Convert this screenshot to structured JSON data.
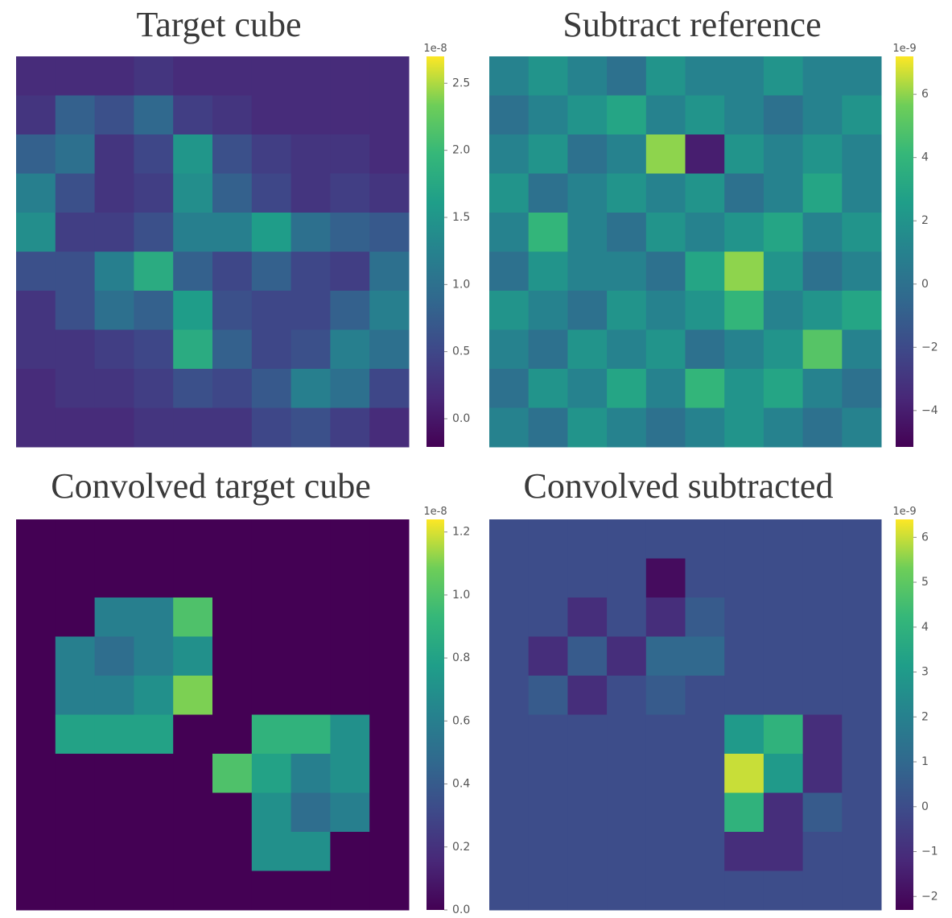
{
  "chart_data": [
    {
      "type": "heatmap",
      "title": "Target cube",
      "scale_label": "1e-8",
      "colormap": "viridis",
      "clim": [
        -0.21,
        2.7
      ],
      "cticks": [
        {
          "value": 0,
          "label": "0.0"
        },
        0.5,
        {
          "value": 1,
          "label": "1.0"
        },
        1.5,
        {
          "value": 2,
          "label": "2.0"
        },
        2.5
      ],
      "values": [
        [
          0.2,
          0.2,
          0.2,
          0.3,
          0.2,
          0.2,
          0.2,
          0.2,
          0.2,
          0.2
        ],
        [
          0.3,
          0.8,
          0.6,
          0.9,
          0.4,
          0.3,
          0.2,
          0.2,
          0.2,
          0.2
        ],
        [
          0.8,
          1.0,
          0.3,
          0.5,
          1.5,
          0.6,
          0.4,
          0.3,
          0.3,
          0.2
        ],
        [
          1.2,
          0.6,
          0.3,
          0.4,
          1.4,
          0.8,
          0.5,
          0.3,
          0.4,
          0.3
        ],
        [
          1.4,
          0.4,
          0.4,
          0.6,
          1.2,
          1.2,
          1.6,
          1.0,
          0.8,
          0.7
        ],
        [
          0.6,
          0.6,
          1.2,
          1.8,
          0.8,
          0.5,
          0.8,
          0.5,
          0.4,
          1.0
        ],
        [
          0.3,
          0.6,
          1.0,
          0.8,
          1.6,
          0.6,
          0.5,
          0.5,
          0.8,
          1.2
        ],
        [
          0.3,
          0.3,
          0.4,
          0.5,
          1.8,
          0.8,
          0.5,
          0.6,
          1.2,
          1.0
        ],
        [
          0.2,
          0.3,
          0.3,
          0.4,
          0.6,
          0.5,
          0.7,
          1.2,
          1.0,
          0.5
        ],
        [
          0.2,
          0.2,
          0.2,
          0.3,
          0.3,
          0.3,
          0.5,
          0.6,
          0.4,
          0.2
        ]
      ]
    },
    {
      "type": "heatmap",
      "title": "Subtract reference",
      "scale_label": "1e-9",
      "colormap": "viridis",
      "clim": [
        -5.15,
        7.2
      ],
      "cticks": [
        {
          "value": -4,
          "label": "−4"
        },
        {
          "value": -2,
          "label": "−2"
        },
        0,
        2,
        4,
        6
      ],
      "values": [
        [
          1,
          2,
          1,
          0,
          2,
          1,
          1,
          2,
          1,
          1
        ],
        [
          0,
          1,
          2,
          3,
          1,
          2,
          1,
          0,
          1,
          2
        ],
        [
          1,
          2,
          0,
          1,
          6,
          -4,
          2,
          1,
          2,
          1
        ],
        [
          2,
          0,
          1,
          2,
          1,
          2,
          0,
          1,
          3,
          1
        ],
        [
          1,
          4,
          1,
          0,
          2,
          1,
          2,
          3,
          1,
          2
        ],
        [
          0,
          2,
          1,
          1,
          0,
          3,
          6,
          2,
          0,
          1
        ],
        [
          2,
          1,
          0,
          2,
          1,
          2,
          4,
          1,
          2,
          3
        ],
        [
          1,
          0,
          2,
          1,
          2,
          0,
          1,
          2,
          5,
          1
        ],
        [
          0,
          2,
          1,
          3,
          1,
          4,
          2,
          3,
          1,
          0
        ],
        [
          1,
          0,
          2,
          1,
          0,
          1,
          2,
          1,
          0,
          1
        ]
      ]
    },
    {
      "type": "heatmap",
      "title": "Convolved target cube",
      "scale_label": "1e-8",
      "colormap": "viridis",
      "clim": [
        0,
        1.24
      ],
      "cticks": [
        {
          "value": 0,
          "label": "0.0"
        },
        0.2,
        0.4,
        0.6,
        0.8,
        {
          "value": 1,
          "label": "1.0"
        },
        1.2
      ],
      "values": [
        [
          0,
          0,
          0,
          0,
          0,
          0,
          0,
          0,
          0,
          0
        ],
        [
          0,
          0,
          0,
          0,
          0,
          0,
          0,
          0,
          0,
          0
        ],
        [
          0,
          0,
          0.6,
          0.6,
          1.0,
          0,
          0,
          0,
          0,
          0
        ],
        [
          0,
          0.6,
          0.5,
          0.6,
          0.7,
          0,
          0,
          0,
          0,
          0
        ],
        [
          0,
          0.6,
          0.6,
          0.7,
          1.1,
          0,
          0,
          0,
          0,
          0
        ],
        [
          0,
          0.8,
          0.8,
          0.8,
          0,
          0,
          0.9,
          0.9,
          0.7,
          0
        ],
        [
          0,
          0,
          0,
          0,
          0,
          1.0,
          0.8,
          0.6,
          0.7,
          0
        ],
        [
          0,
          0,
          0,
          0,
          0,
          0,
          0.7,
          0.5,
          0.6,
          0
        ],
        [
          0,
          0,
          0,
          0,
          0,
          0,
          0.7,
          0.7,
          0,
          0
        ],
        [
          0,
          0,
          0,
          0,
          0,
          0,
          0,
          0,
          0,
          0
        ]
      ]
    },
    {
      "type": "heatmap",
      "title": "Convolved subtracted",
      "scale_label": "1e-9",
      "colormap": "viridis",
      "clim": [
        -2.3,
        6.4
      ],
      "cticks": [
        {
          "value": -2,
          "label": "−2"
        },
        {
          "value": -1,
          "label": "−1"
        },
        0,
        1,
        2,
        3,
        4,
        5,
        6
      ],
      "values": [
        [
          0,
          0,
          0,
          0,
          0,
          0,
          0,
          0,
          0,
          0
        ],
        [
          0,
          0,
          0,
          0,
          -2,
          0,
          0,
          0,
          0,
          0
        ],
        [
          0,
          0,
          -1,
          0,
          -1,
          0.5,
          0,
          0,
          0,
          0
        ],
        [
          0,
          -1,
          0.5,
          -1,
          1,
          1,
          0,
          0,
          0,
          0
        ],
        [
          0,
          0.5,
          -1,
          0,
          0.5,
          0,
          0,
          0,
          0,
          0
        ],
        [
          0,
          0,
          0,
          0,
          0,
          0,
          3,
          4,
          -1,
          0
        ],
        [
          0,
          0,
          0,
          0,
          0,
          0,
          6,
          3,
          -1,
          0
        ],
        [
          0,
          0,
          0,
          0,
          0,
          0,
          4,
          -1,
          0.5,
          0
        ],
        [
          0,
          0,
          0,
          0,
          0,
          0,
          -1,
          -1,
          0,
          0
        ],
        [
          0,
          0,
          0,
          0,
          0,
          0,
          0,
          0,
          0,
          0
        ]
      ]
    }
  ]
}
